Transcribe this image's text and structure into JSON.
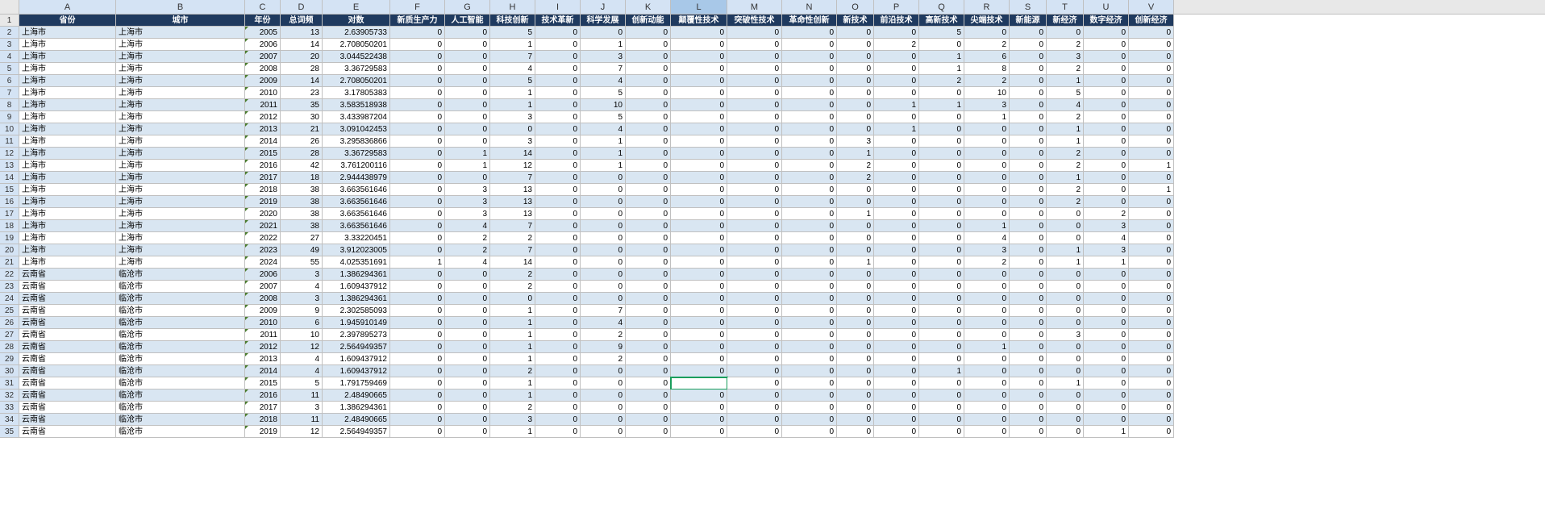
{
  "columns": [
    "A",
    "B",
    "C",
    "D",
    "E",
    "F",
    "G",
    "H",
    "I",
    "J",
    "K",
    "L",
    "M",
    "N",
    "O",
    "P",
    "Q",
    "R",
    "S",
    "T",
    "U",
    "V"
  ],
  "selected_col": "L",
  "active_cell": {
    "row": 31,
    "col": 11
  },
  "headers": [
    "省份",
    "城市",
    "年份",
    "总词频",
    "对数",
    "新质生产力",
    "人工智能",
    "科技创新",
    "技术革新",
    "科学发展",
    "创新动能",
    "颠覆性技术",
    "突破性技术",
    "革命性创新",
    "新技术",
    "前沿技术",
    "高新技术",
    "尖端技术",
    "新能源",
    "新经济",
    "数字经济",
    "创新经济"
  ],
  "rows": [
    [
      "上海市",
      "上海市",
      "2005",
      "13",
      "2.63905733",
      "0",
      "0",
      "5",
      "0",
      "0",
      "0",
      "0",
      "0",
      "0",
      "0",
      "0",
      "5",
      "0",
      "0",
      "0",
      "0",
      "0"
    ],
    [
      "上海市",
      "上海市",
      "2006",
      "14",
      "2.708050201",
      "0",
      "0",
      "1",
      "0",
      "1",
      "0",
      "0",
      "0",
      "0",
      "0",
      "2",
      "0",
      "2",
      "0",
      "2",
      "0",
      "0"
    ],
    [
      "上海市",
      "上海市",
      "2007",
      "20",
      "3.044522438",
      "0",
      "0",
      "7",
      "0",
      "3",
      "0",
      "0",
      "0",
      "0",
      "0",
      "0",
      "1",
      "6",
      "0",
      "3",
      "0",
      "0"
    ],
    [
      "上海市",
      "上海市",
      "2008",
      "28",
      "3.36729583",
      "0",
      "0",
      "4",
      "0",
      "7",
      "0",
      "0",
      "0",
      "0",
      "0",
      "0",
      "1",
      "8",
      "0",
      "2",
      "0",
      "0"
    ],
    [
      "上海市",
      "上海市",
      "2009",
      "14",
      "2.708050201",
      "0",
      "0",
      "5",
      "0",
      "4",
      "0",
      "0",
      "0",
      "0",
      "0",
      "0",
      "2",
      "2",
      "0",
      "1",
      "0",
      "0"
    ],
    [
      "上海市",
      "上海市",
      "2010",
      "23",
      "3.17805383",
      "0",
      "0",
      "1",
      "0",
      "5",
      "0",
      "0",
      "0",
      "0",
      "0",
      "0",
      "0",
      "10",
      "0",
      "5",
      "0",
      "0"
    ],
    [
      "上海市",
      "上海市",
      "2011",
      "35",
      "3.583518938",
      "0",
      "0",
      "1",
      "0",
      "10",
      "0",
      "0",
      "0",
      "0",
      "0",
      "1",
      "1",
      "3",
      "0",
      "4",
      "0",
      "0"
    ],
    [
      "上海市",
      "上海市",
      "2012",
      "30",
      "3.433987204",
      "0",
      "0",
      "3",
      "0",
      "5",
      "0",
      "0",
      "0",
      "0",
      "0",
      "0",
      "0",
      "1",
      "0",
      "2",
      "0",
      "0"
    ],
    [
      "上海市",
      "上海市",
      "2013",
      "21",
      "3.091042453",
      "0",
      "0",
      "0",
      "0",
      "4",
      "0",
      "0",
      "0",
      "0",
      "0",
      "1",
      "0",
      "0",
      "0",
      "1",
      "0",
      "0"
    ],
    [
      "上海市",
      "上海市",
      "2014",
      "26",
      "3.295836866",
      "0",
      "0",
      "3",
      "0",
      "1",
      "0",
      "0",
      "0",
      "0",
      "3",
      "0",
      "0",
      "0",
      "0",
      "1",
      "0",
      "0"
    ],
    [
      "上海市",
      "上海市",
      "2015",
      "28",
      "3.36729583",
      "0",
      "1",
      "14",
      "0",
      "1",
      "0",
      "0",
      "0",
      "0",
      "1",
      "0",
      "0",
      "0",
      "0",
      "2",
      "0",
      "0"
    ],
    [
      "上海市",
      "上海市",
      "2016",
      "42",
      "3.761200116",
      "0",
      "1",
      "12",
      "0",
      "1",
      "0",
      "0",
      "0",
      "0",
      "2",
      "0",
      "0",
      "0",
      "0",
      "2",
      "0",
      "1"
    ],
    [
      "上海市",
      "上海市",
      "2017",
      "18",
      "2.944438979",
      "0",
      "0",
      "7",
      "0",
      "0",
      "0",
      "0",
      "0",
      "0",
      "2",
      "0",
      "0",
      "0",
      "0",
      "1",
      "0",
      "0"
    ],
    [
      "上海市",
      "上海市",
      "2018",
      "38",
      "3.663561646",
      "0",
      "3",
      "13",
      "0",
      "0",
      "0",
      "0",
      "0",
      "0",
      "0",
      "0",
      "0",
      "0",
      "0",
      "2",
      "0",
      "1"
    ],
    [
      "上海市",
      "上海市",
      "2019",
      "38",
      "3.663561646",
      "0",
      "3",
      "13",
      "0",
      "0",
      "0",
      "0",
      "0",
      "0",
      "0",
      "0",
      "0",
      "0",
      "0",
      "2",
      "0",
      "0"
    ],
    [
      "上海市",
      "上海市",
      "2020",
      "38",
      "3.663561646",
      "0",
      "3",
      "13",
      "0",
      "0",
      "0",
      "0",
      "0",
      "0",
      "1",
      "0",
      "0",
      "0",
      "0",
      "0",
      "2",
      "0"
    ],
    [
      "上海市",
      "上海市",
      "2021",
      "38",
      "3.663561646",
      "0",
      "4",
      "7",
      "0",
      "0",
      "0",
      "0",
      "0",
      "0",
      "0",
      "0",
      "0",
      "1",
      "0",
      "0",
      "3",
      "0"
    ],
    [
      "上海市",
      "上海市",
      "2022",
      "27",
      "3.33220451",
      "0",
      "2",
      "2",
      "0",
      "0",
      "0",
      "0",
      "0",
      "0",
      "0",
      "0",
      "0",
      "4",
      "0",
      "0",
      "4",
      "0"
    ],
    [
      "上海市",
      "上海市",
      "2023",
      "49",
      "3.912023005",
      "0",
      "2",
      "7",
      "0",
      "0",
      "0",
      "0",
      "0",
      "0",
      "0",
      "0",
      "0",
      "3",
      "0",
      "1",
      "3",
      "0"
    ],
    [
      "上海市",
      "上海市",
      "2024",
      "55",
      "4.025351691",
      "1",
      "4",
      "14",
      "0",
      "0",
      "0",
      "0",
      "0",
      "0",
      "1",
      "0",
      "0",
      "2",
      "0",
      "1",
      "1",
      "0"
    ],
    [
      "云南省",
      "临沧市",
      "2006",
      "3",
      "1.386294361",
      "0",
      "0",
      "2",
      "0",
      "0",
      "0",
      "0",
      "0",
      "0",
      "0",
      "0",
      "0",
      "0",
      "0",
      "0",
      "0",
      "0"
    ],
    [
      "云南省",
      "临沧市",
      "2007",
      "4",
      "1.609437912",
      "0",
      "0",
      "2",
      "0",
      "0",
      "0",
      "0",
      "0",
      "0",
      "0",
      "0",
      "0",
      "0",
      "0",
      "0",
      "0",
      "0"
    ],
    [
      "云南省",
      "临沧市",
      "2008",
      "3",
      "1.386294361",
      "0",
      "0",
      "0",
      "0",
      "0",
      "0",
      "0",
      "0",
      "0",
      "0",
      "0",
      "0",
      "0",
      "0",
      "0",
      "0",
      "0"
    ],
    [
      "云南省",
      "临沧市",
      "2009",
      "9",
      "2.302585093",
      "0",
      "0",
      "1",
      "0",
      "7",
      "0",
      "0",
      "0",
      "0",
      "0",
      "0",
      "0",
      "0",
      "0",
      "0",
      "0",
      "0"
    ],
    [
      "云南省",
      "临沧市",
      "2010",
      "6",
      "1.945910149",
      "0",
      "0",
      "1",
      "0",
      "4",
      "0",
      "0",
      "0",
      "0",
      "0",
      "0",
      "0",
      "0",
      "0",
      "0",
      "0",
      "0"
    ],
    [
      "云南省",
      "临沧市",
      "2011",
      "10",
      "2.397895273",
      "0",
      "0",
      "1",
      "0",
      "2",
      "0",
      "0",
      "0",
      "0",
      "0",
      "0",
      "0",
      "0",
      "0",
      "3",
      "0",
      "0"
    ],
    [
      "云南省",
      "临沧市",
      "2012",
      "12",
      "2.564949357",
      "0",
      "0",
      "1",
      "0",
      "9",
      "0",
      "0",
      "0",
      "0",
      "0",
      "0",
      "0",
      "1",
      "0",
      "0",
      "0",
      "0"
    ],
    [
      "云南省",
      "临沧市",
      "2013",
      "4",
      "1.609437912",
      "0",
      "0",
      "1",
      "0",
      "2",
      "0",
      "0",
      "0",
      "0",
      "0",
      "0",
      "0",
      "0",
      "0",
      "0",
      "0",
      "0"
    ],
    [
      "云南省",
      "临沧市",
      "2014",
      "4",
      "1.609437912",
      "0",
      "0",
      "2",
      "0",
      "0",
      "0",
      "0",
      "0",
      "0",
      "0",
      "0",
      "1",
      "0",
      "0",
      "0",
      "0",
      "0"
    ],
    [
      "云南省",
      "临沧市",
      "2015",
      "5",
      "1.791759469",
      "0",
      "0",
      "1",
      "0",
      "0",
      "0",
      "",
      "0",
      "0",
      "0",
      "0",
      "0",
      "0",
      "0",
      "1",
      "0",
      "0"
    ],
    [
      "云南省",
      "临沧市",
      "2016",
      "11",
      "2.48490665",
      "0",
      "0",
      "1",
      "0",
      "0",
      "0",
      "0",
      "0",
      "0",
      "0",
      "0",
      "0",
      "0",
      "0",
      "0",
      "0",
      "0"
    ],
    [
      "云南省",
      "临沧市",
      "2017",
      "3",
      "1.386294361",
      "0",
      "0",
      "2",
      "0",
      "0",
      "0",
      "0",
      "0",
      "0",
      "0",
      "0",
      "0",
      "0",
      "0",
      "0",
      "0",
      "0"
    ],
    [
      "云南省",
      "临沧市",
      "2018",
      "11",
      "2.48490665",
      "0",
      "0",
      "3",
      "0",
      "0",
      "0",
      "0",
      "0",
      "0",
      "0",
      "0",
      "0",
      "0",
      "0",
      "0",
      "0",
      "0"
    ],
    [
      "云南省",
      "临沧市",
      "2019",
      "12",
      "2.564949357",
      "0",
      "0",
      "1",
      "0",
      "0",
      "0",
      "0",
      "0",
      "0",
      "0",
      "0",
      "0",
      "0",
      "0",
      "0",
      "1",
      "0"
    ]
  ],
  "col_widths": [
    "w-A",
    "w-B",
    "w-C",
    "w-D",
    "w-E",
    "w-F",
    "w-G",
    "w-H",
    "w-I",
    "w-J",
    "w-K",
    "w-L",
    "w-M",
    "w-N",
    "w-O",
    "w-P",
    "w-Q",
    "w-R",
    "w-S",
    "w-T",
    "w-U",
    "w-V"
  ],
  "col_types": [
    "txt",
    "txt",
    "yr",
    "num",
    "num",
    "num",
    "num",
    "num",
    "num",
    "num",
    "num",
    "num",
    "num",
    "num",
    "num",
    "num",
    "num",
    "num",
    "num",
    "num",
    "num",
    "num"
  ]
}
